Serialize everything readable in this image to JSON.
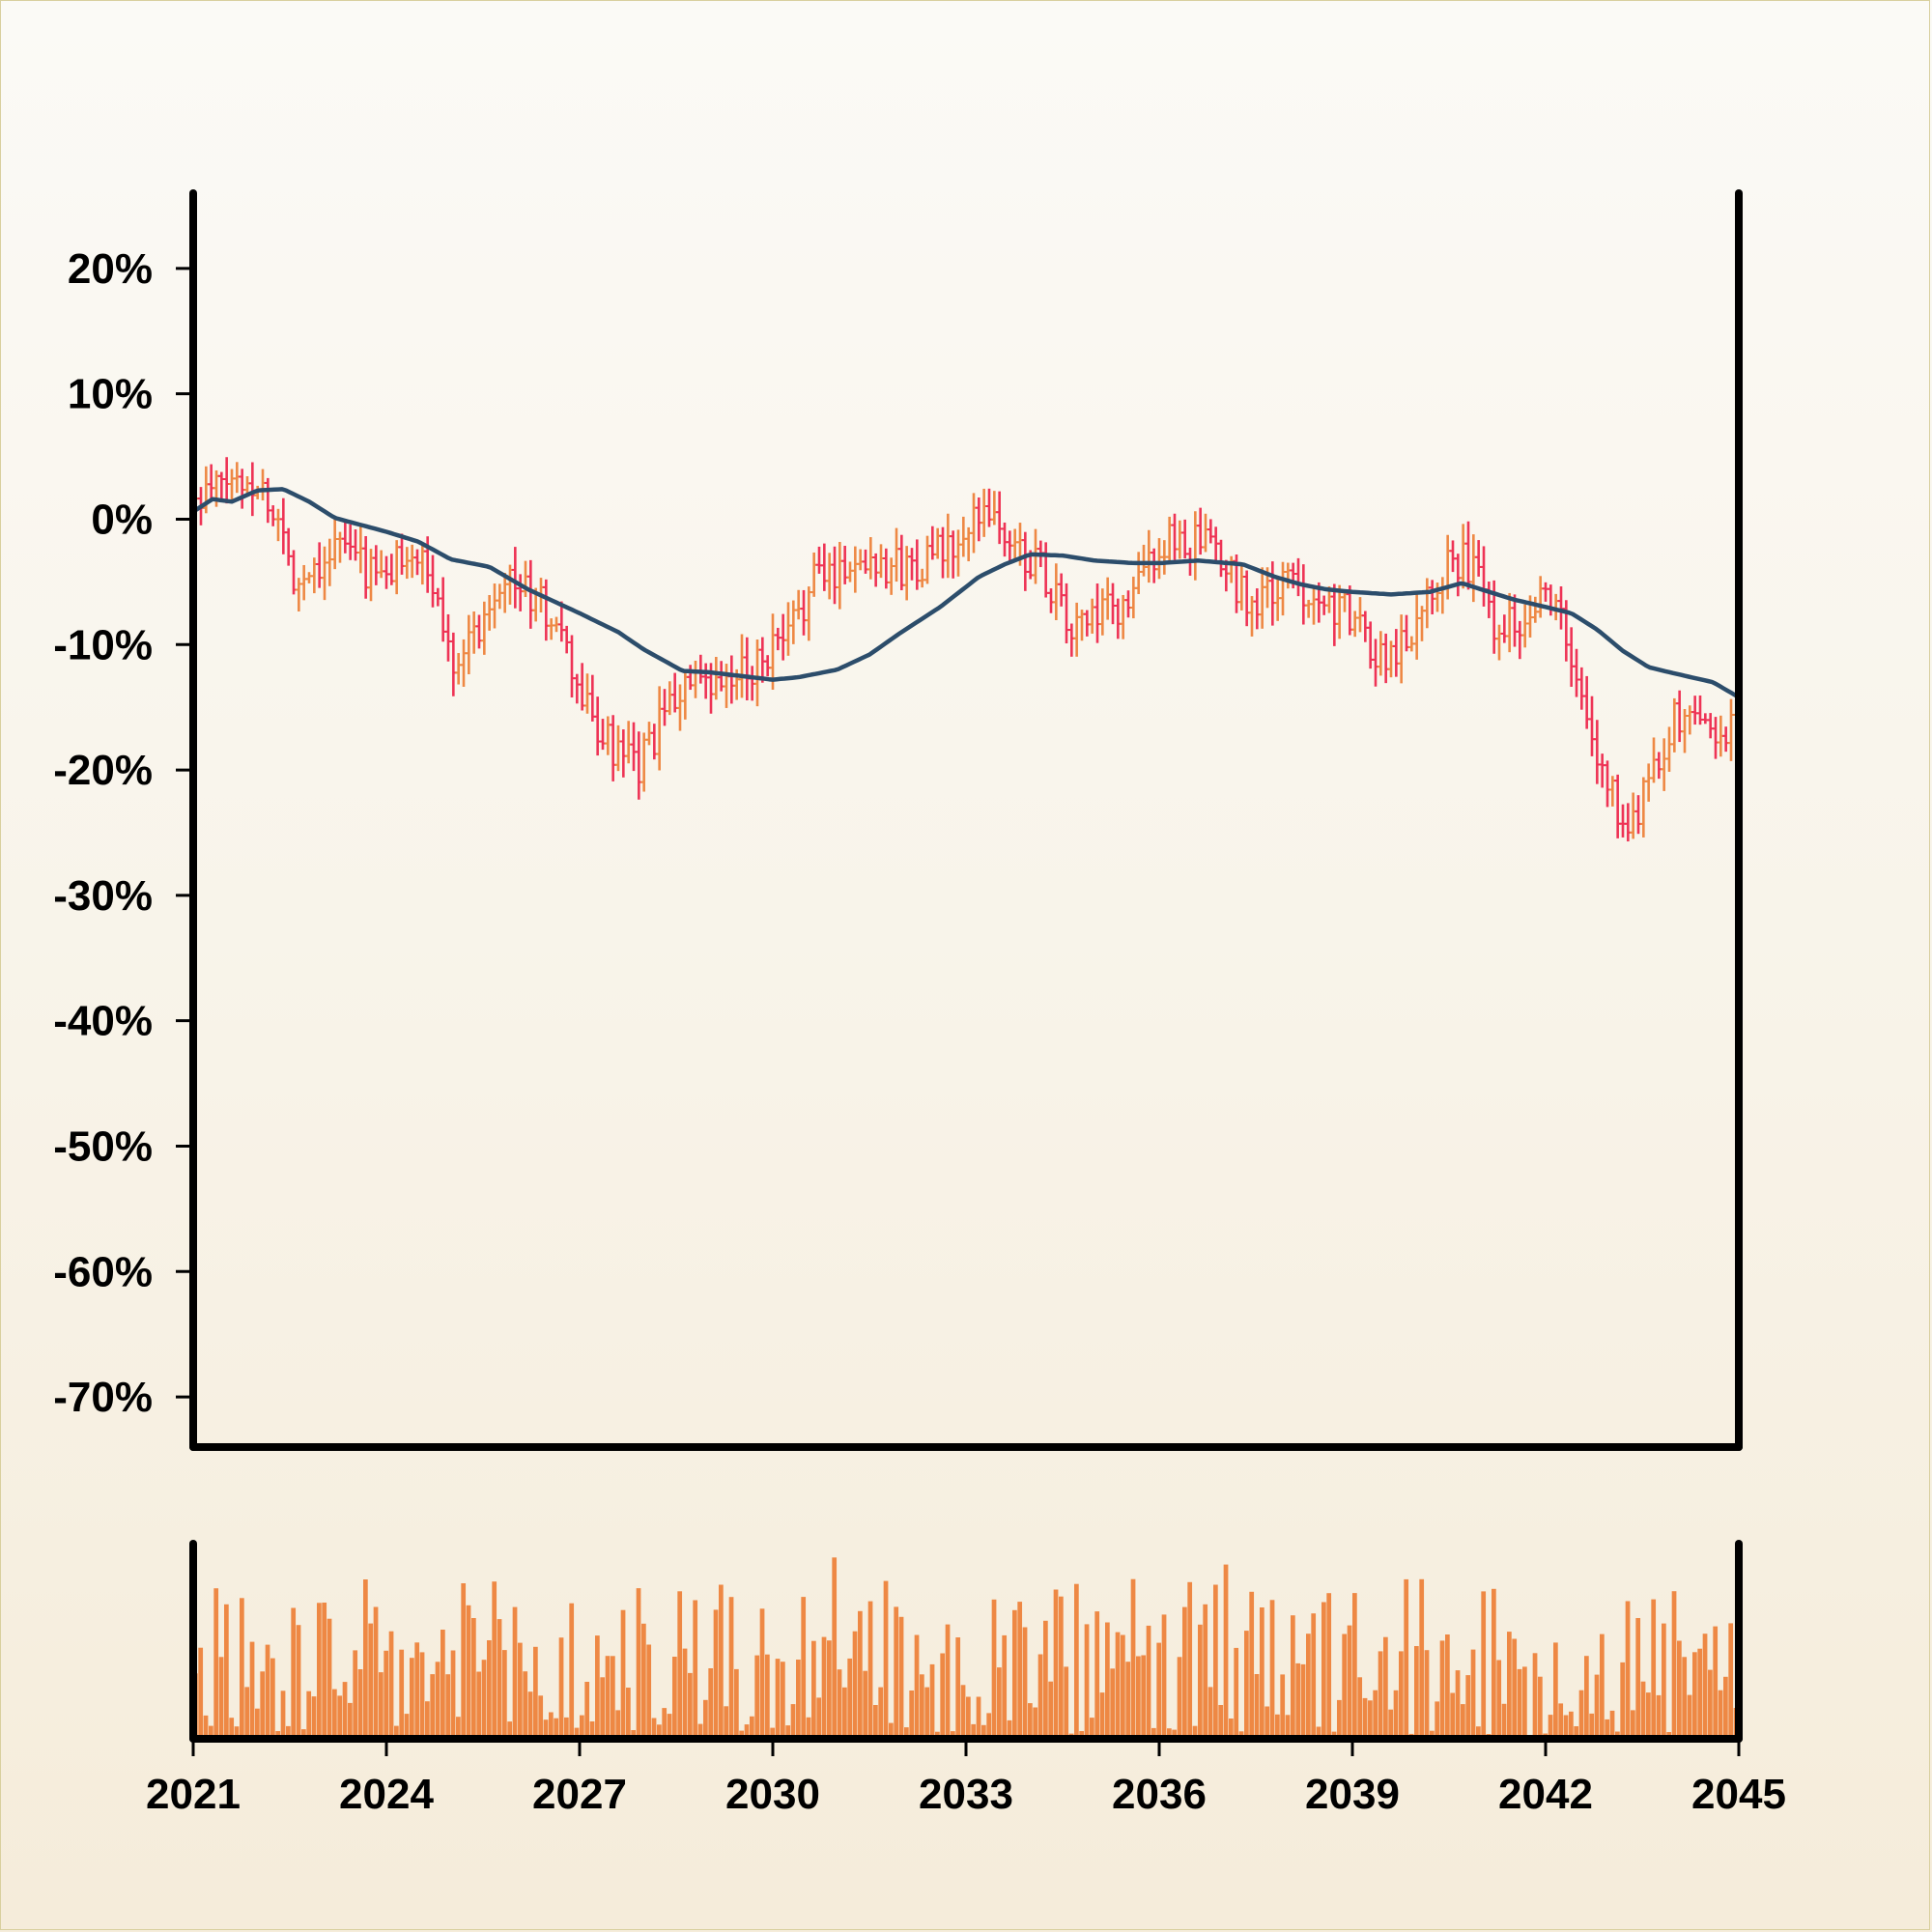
{
  "chart_data": {
    "type": "ohlc",
    "title": "",
    "xlabel": "",
    "ylabel": "",
    "x_range": [
      2021,
      2045
    ],
    "x_ticks": [
      "2021",
      "2024",
      "2027",
      "2030",
      "2033",
      "2036",
      "2039",
      "2042",
      "2045"
    ],
    "ylim": [
      -74,
      26
    ],
    "y_ticks": [
      "20%",
      "10%",
      "0%",
      "-10%",
      "-20%",
      "-30%",
      "-40%",
      "-50%",
      "-60%",
      "-70%"
    ],
    "grid": false,
    "legend": "none",
    "colors": {
      "up": "#ee8844",
      "down": "#ee3355",
      "moving_average": "#2c4d6b",
      "volume": "#ee8844",
      "axis": "#000000"
    },
    "series": [
      {
        "kind": "price_path",
        "unit": "percent",
        "x": [
          2021.0,
          2021.5,
          2022.0,
          2022.3,
          2022.6,
          2023.0,
          2023.3,
          2023.7,
          2024.0,
          2024.3,
          2024.7,
          2025.0,
          2025.4,
          2025.8,
          2026.2,
          2026.6,
          2027.0,
          2027.3,
          2027.6,
          2027.9,
          2028.2,
          2028.6,
          2029.0,
          2029.4,
          2029.8,
          2030.2,
          2030.6,
          2031.0,
          2031.5,
          2032.0,
          2032.5,
          2033.0,
          2033.3,
          2033.6,
          2034.0,
          2034.3,
          2034.6,
          2035.0,
          2035.5,
          2036.0,
          2036.3,
          2036.7,
          2037.0,
          2037.5,
          2038.0,
          2038.5,
          2039.0,
          2039.4,
          2039.8,
          2040.2,
          2040.6,
          2040.9,
          2041.2,
          2041.6,
          2042.0,
          2042.3,
          2042.5,
          2042.8,
          2043.1,
          2043.4,
          2043.7,
          2044.0,
          2044.4,
          2044.8,
          2045.0
        ],
        "y": [
          1,
          3,
          3,
          0,
          -5,
          -3,
          -2,
          -4,
          -5,
          -2,
          -5,
          -11,
          -9,
          -4,
          -6,
          -8,
          -14,
          -17,
          -19,
          -20,
          -17,
          -13,
          -14,
          -13,
          -11,
          -10,
          -5,
          -4,
          -3,
          -4,
          -3,
          -2,
          2,
          -2,
          -3,
          -5,
          -9,
          -8,
          -7,
          -2,
          -2,
          -2,
          -4,
          -7,
          -5,
          -6,
          -8,
          -11,
          -10,
          -5,
          -3,
          -4,
          -8,
          -8,
          -5,
          -9,
          -14,
          -19,
          -23,
          -24,
          -19,
          -16,
          -16,
          -17,
          -15
        ]
      },
      {
        "kind": "moving_average",
        "unit": "percent",
        "x": [
          2021.0,
          2021.3,
          2021.6,
          2022.0,
          2022.4,
          2022.8,
          2023.2,
          2024.0,
          2024.5,
          2025.0,
          2025.6,
          2026.2,
          2027.0,
          2027.6,
          2028.0,
          2028.6,
          2029.0,
          2030.0,
          2030.4,
          2031.0,
          2031.5,
          2032.0,
          2032.6,
          2033.2,
          2033.6,
          2034.0,
          2034.5,
          2035.0,
          2035.6,
          2036.0,
          2036.6,
          2037.3,
          2037.8,
          2038.2,
          2038.6,
          2039.0,
          2039.6,
          2040.2,
          2040.7,
          2041.0,
          2041.5,
          2042.0,
          2042.4,
          2042.8,
          2043.2,
          2043.6,
          2044.0,
          2044.6,
          2045.0
        ],
        "y": [
          0.6,
          1.6,
          1.4,
          2.3,
          2.4,
          1.4,
          0.1,
          -1.0,
          -1.8,
          -3.2,
          -3.8,
          -5.6,
          -7.5,
          -9.0,
          -10.4,
          -12.1,
          -12.2,
          -12.8,
          -12.6,
          -12.0,
          -10.8,
          -9.0,
          -7.0,
          -4.6,
          -3.6,
          -2.8,
          -2.9,
          -3.3,
          -3.5,
          -3.5,
          -3.3,
          -3.6,
          -4.6,
          -5.2,
          -5.6,
          -5.8,
          -6.0,
          -5.8,
          -5.1,
          -5.6,
          -6.4,
          -7.0,
          -7.5,
          -8.8,
          -10.5,
          -11.8,
          -12.3,
          -13.0,
          -14.2
        ]
      },
      {
        "kind": "volume",
        "x_range": [
          2021,
          2045
        ],
        "unit": "relative",
        "y_range": [
          0,
          1
        ]
      }
    ]
  }
}
